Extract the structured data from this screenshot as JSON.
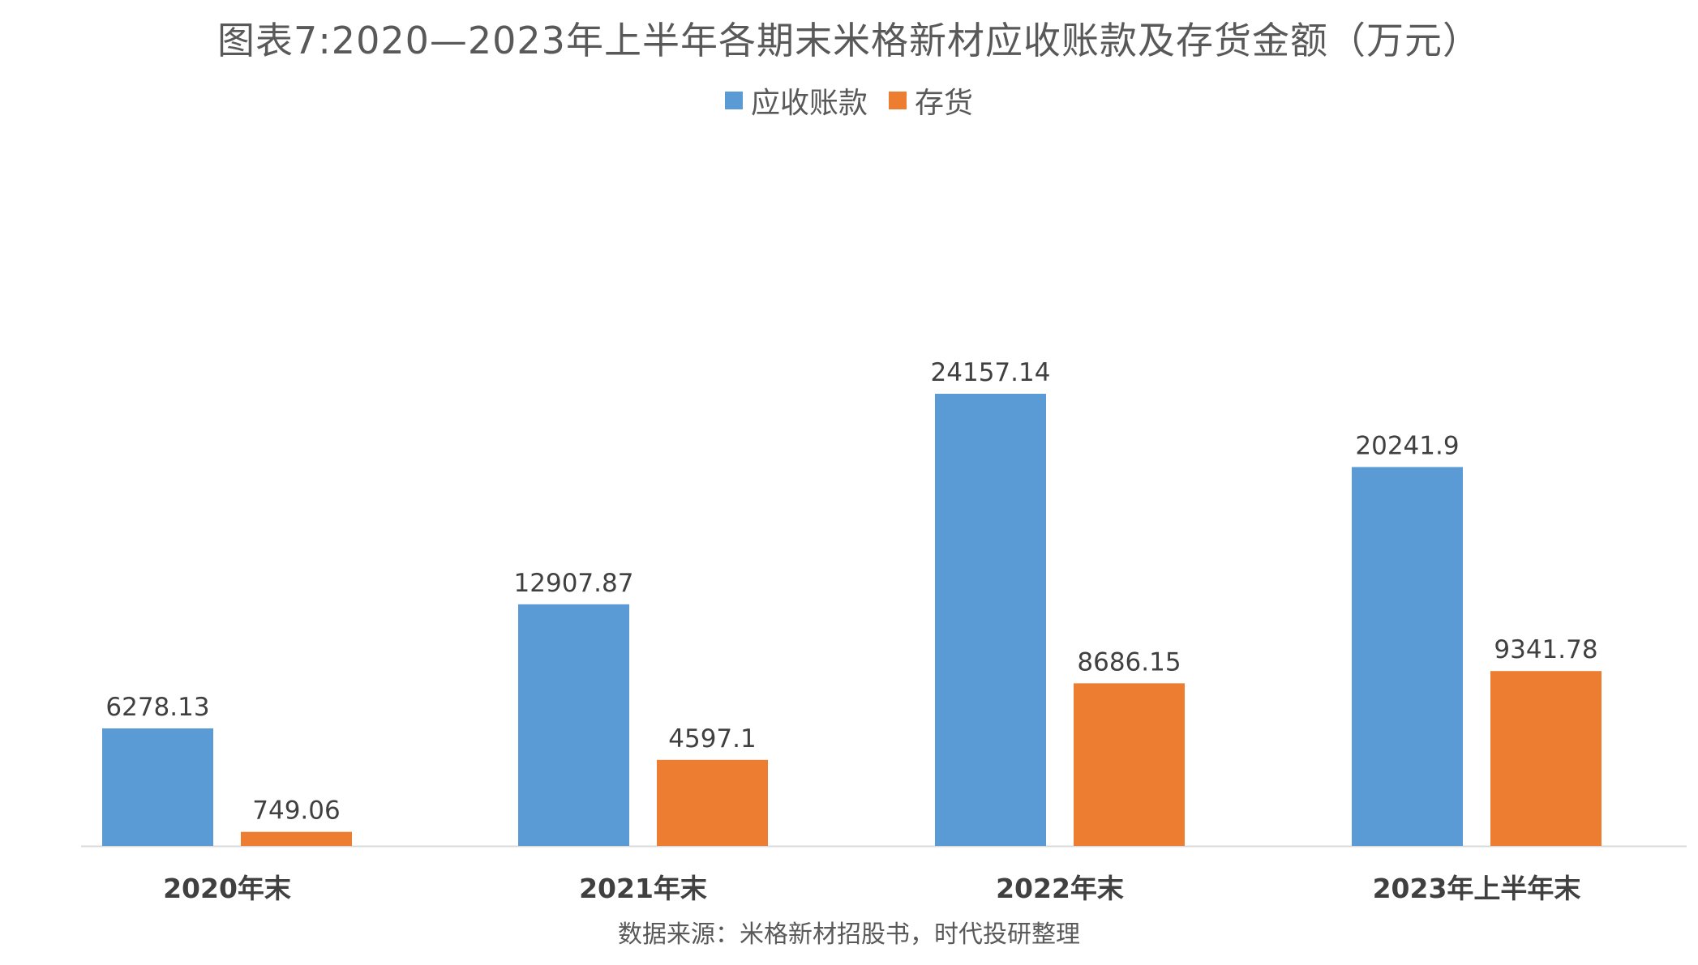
{
  "chart_data": {
    "type": "bar",
    "title": "图表7:2020—2023年上半年各期末米格新材应收账款及存货金额（万元）",
    "categories": [
      "2020年末",
      "2021年末",
      "2022年末",
      "2023年上半年末"
    ],
    "series": [
      {
        "name": "应收账款",
        "color": "#5b9bd5",
        "values": [
          6278.13,
          12907.87,
          24157.14,
          20241.9
        ],
        "labels": [
          "6278.13",
          "12907.87",
          "24157.14",
          "20241.9"
        ]
      },
      {
        "name": "存货",
        "color": "#ed7d31",
        "values": [
          749.06,
          4597.1,
          8686.15,
          9341.78
        ],
        "labels": [
          "749.06",
          "4597.1",
          "8686.15",
          "9341.78"
        ]
      }
    ],
    "ylim": [
      0,
      30000
    ],
    "grid": false,
    "legend_position": "top",
    "source": "数据来源：米格新材招股书，时代投研整理"
  }
}
